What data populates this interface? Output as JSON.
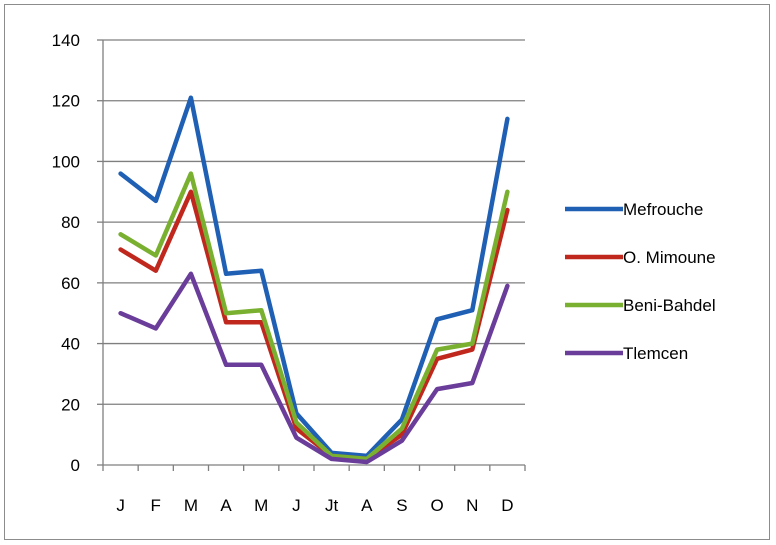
{
  "chart_data": {
    "type": "line",
    "title": "",
    "xlabel": "",
    "ylabel": "",
    "categories": [
      "J",
      "F",
      "M",
      "A",
      "M",
      "J",
      "Jt",
      "A",
      "S",
      "O",
      "N",
      "D"
    ],
    "ylim": [
      0,
      140
    ],
    "yticks": [
      0,
      20,
      40,
      60,
      80,
      100,
      120,
      140
    ],
    "grid": true,
    "legend_position": "right",
    "series": [
      {
        "name": "Mefrouche",
        "color": "#1f5fb4",
        "values": [
          96,
          87,
          121,
          63,
          64,
          17,
          4,
          3,
          15,
          48,
          51,
          114
        ]
      },
      {
        "name": "O. Mimoune",
        "color": "#c0281e",
        "values": [
          71,
          64,
          90,
          47,
          47,
          12,
          3,
          2,
          10,
          35,
          38,
          84
        ]
      },
      {
        "name": "Beni-Bahdel",
        "color": "#7ab030",
        "values": [
          76,
          69,
          96,
          50,
          51,
          14,
          3,
          2,
          12,
          38,
          40,
          90
        ]
      },
      {
        "name": "Tlemcen",
        "color": "#6a3d9a",
        "values": [
          50,
          45,
          63,
          33,
          33,
          9,
          2,
          1,
          8,
          25,
          27,
          59
        ]
      }
    ]
  }
}
